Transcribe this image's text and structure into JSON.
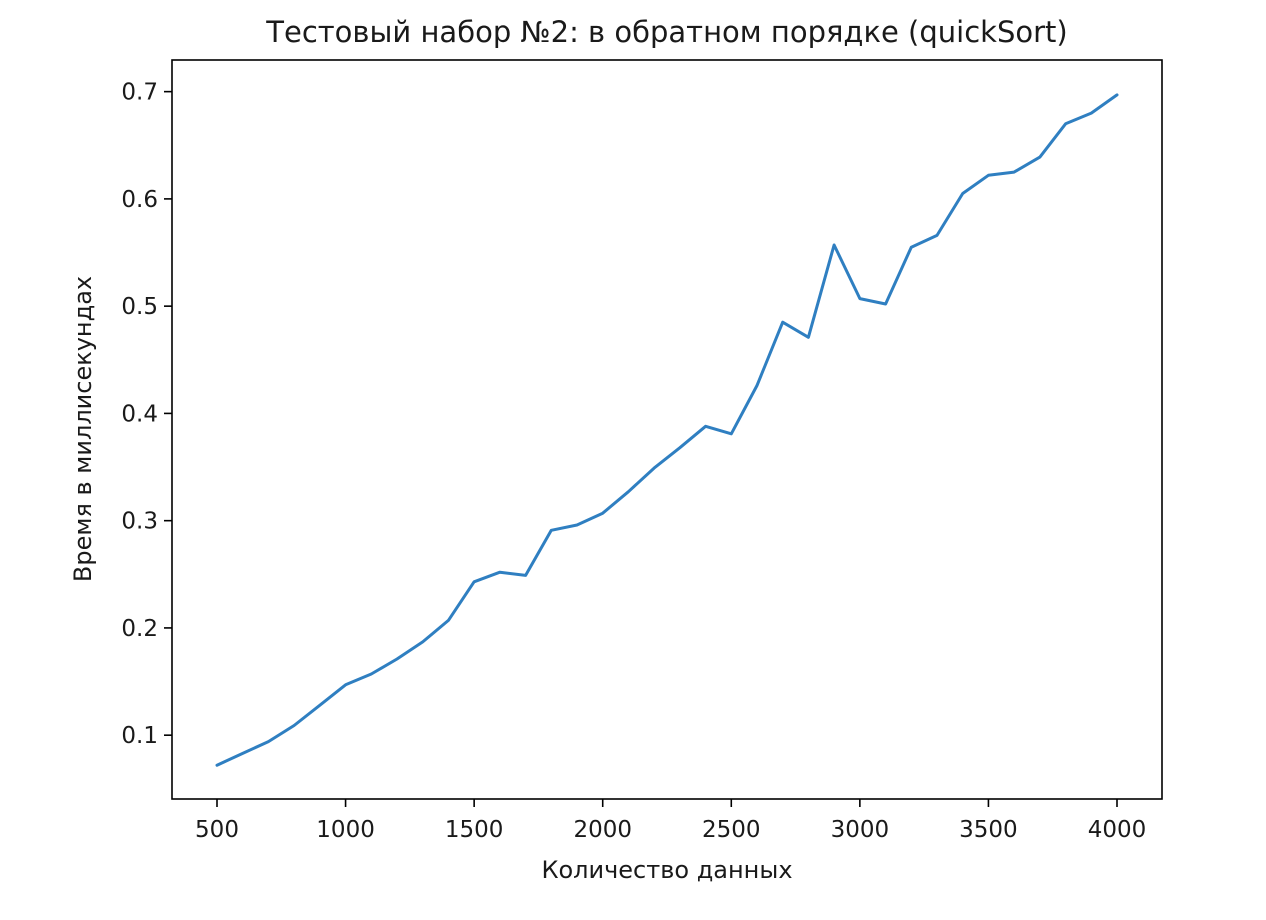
{
  "chart_data": {
    "type": "line",
    "title": "Тестовый набор №2: в обратном порядке (quickSort)",
    "xlabel": "Количество данных",
    "ylabel": "Время в миллисекундах",
    "xlim": [
      325,
      4175
    ],
    "ylim": [
      0.0405,
      0.7295
    ],
    "xticks": [
      500,
      1000,
      1500,
      2000,
      2500,
      3000,
      3500,
      4000
    ],
    "xtick_labels": [
      "500",
      "1000",
      "1500",
      "2000",
      "2500",
      "3000",
      "3500",
      "4000"
    ],
    "yticks": [
      0.1,
      0.2,
      0.3,
      0.4,
      0.5,
      0.6,
      0.7
    ],
    "ytick_labels": [
      "0.1",
      "0.2",
      "0.3",
      "0.4",
      "0.5",
      "0.6",
      "0.7"
    ],
    "grid": false,
    "series": [
      {
        "color": "#2f7fc1",
        "x": [
          500,
          600,
          700,
          800,
          900,
          1000,
          1100,
          1200,
          1300,
          1400,
          1500,
          1600,
          1700,
          1800,
          1900,
          2000,
          2100,
          2200,
          2300,
          2400,
          2500,
          2600,
          2700,
          2800,
          2900,
          3000,
          3100,
          3200,
          3300,
          3400,
          3500,
          3600,
          3700,
          3800,
          3900,
          4000
        ],
        "y": [
          0.072,
          0.083,
          0.094,
          0.109,
          0.128,
          0.147,
          0.157,
          0.171,
          0.187,
          0.207,
          0.243,
          0.252,
          0.249,
          0.291,
          0.296,
          0.307,
          0.327,
          0.349,
          0.368,
          0.388,
          0.381,
          0.426,
          0.485,
          0.471,
          0.557,
          0.507,
          0.502,
          0.555,
          0.566,
          0.605,
          0.622,
          0.625,
          0.639,
          0.67,
          0.68,
          0.697
        ]
      }
    ]
  }
}
